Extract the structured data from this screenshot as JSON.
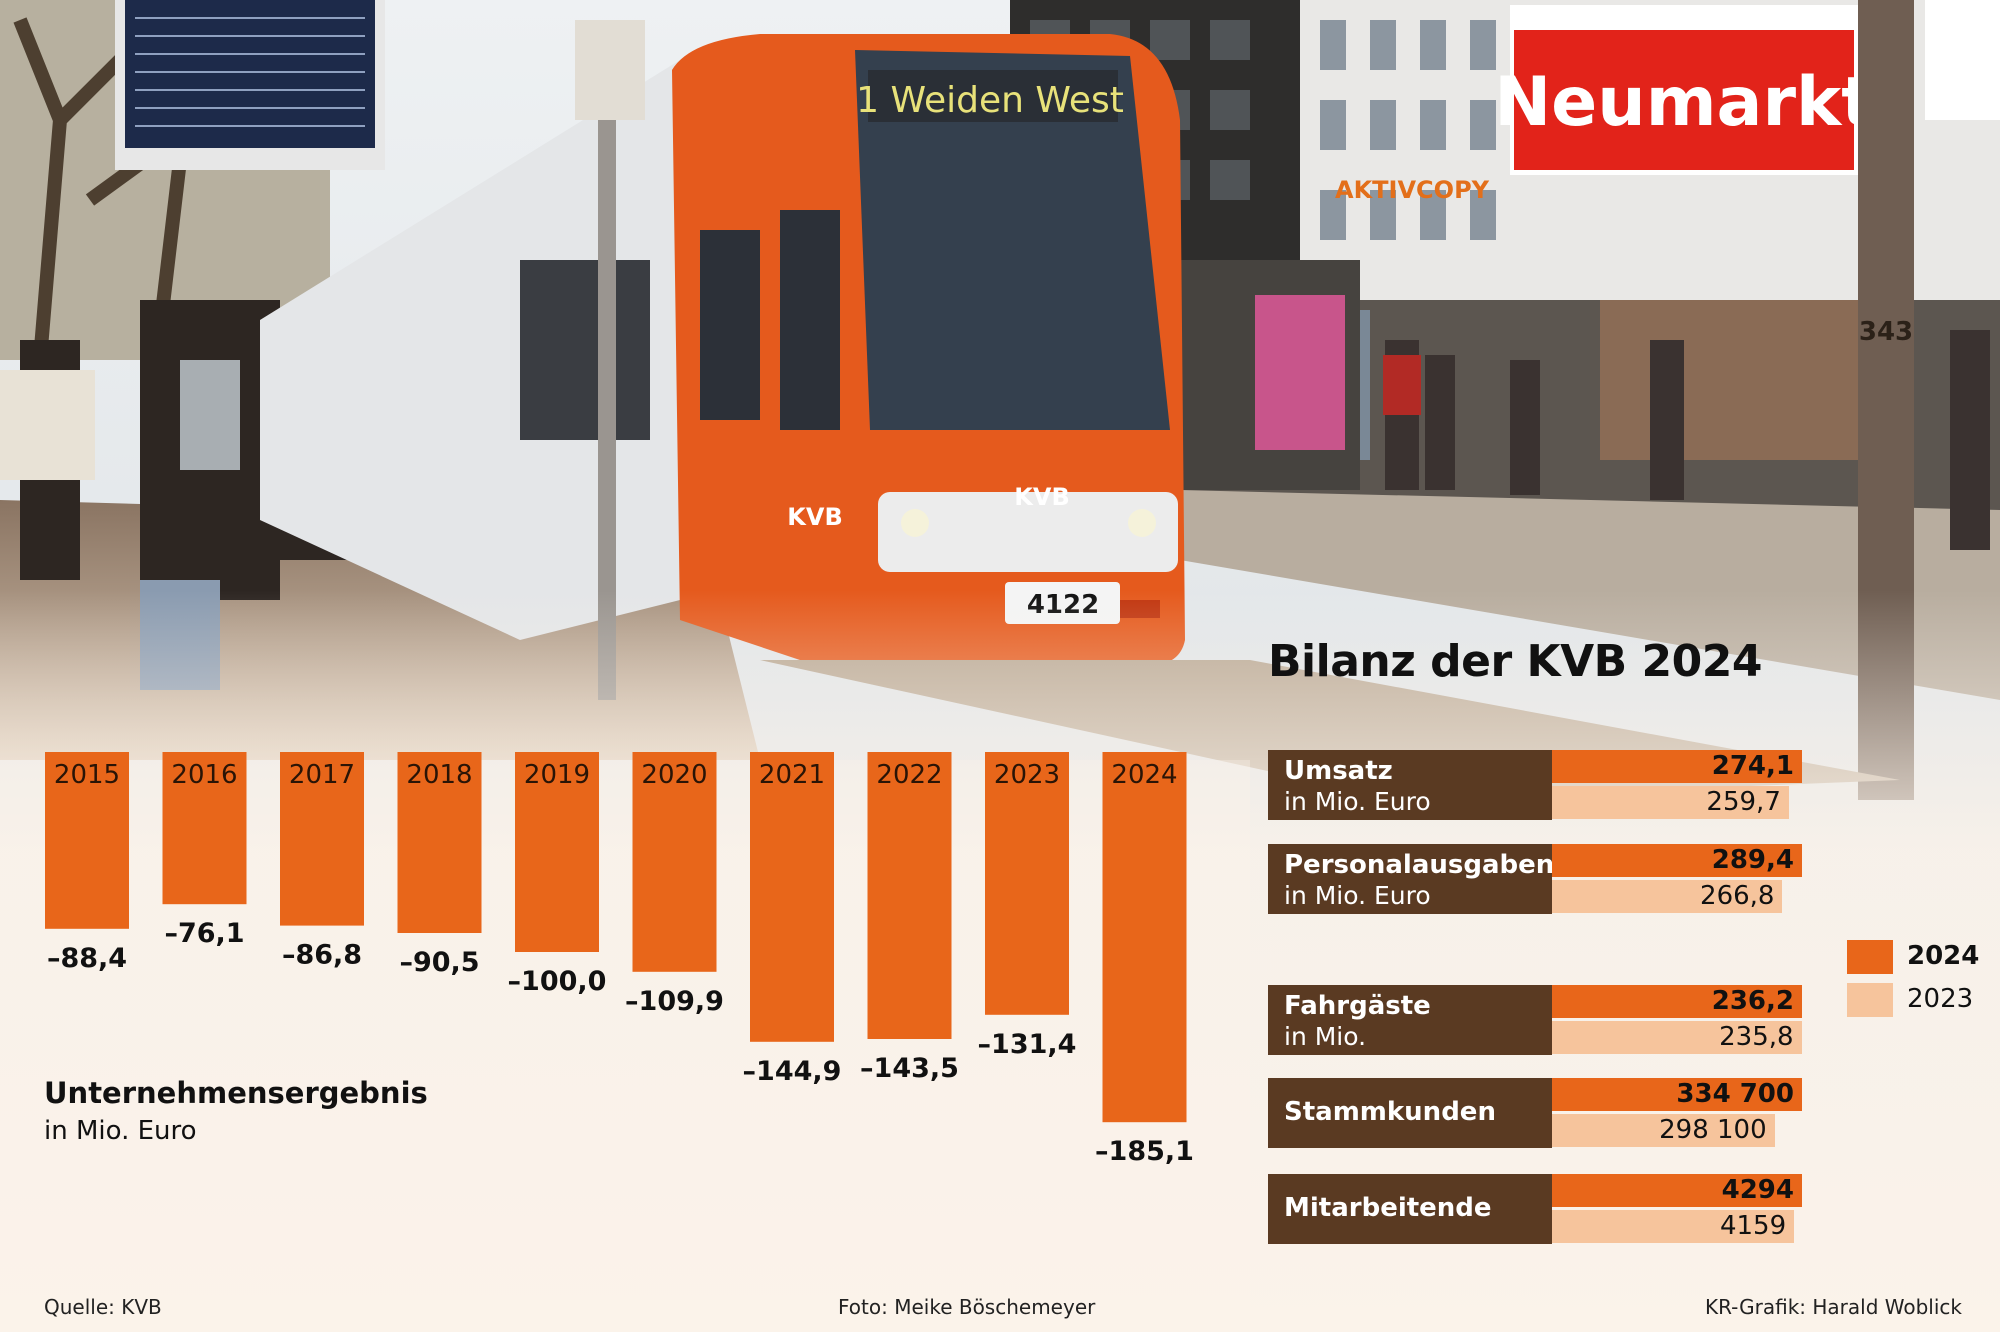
{
  "photo": {
    "destination_display": "1 Weiden West",
    "tram_number": "4122",
    "kvb_logo": "KVB",
    "station_sign": "Neumarkt",
    "shop_sign": "AKTIVCOPY",
    "pole_number": "343"
  },
  "chart_data": [
    {
      "type": "bar",
      "title": "Unternehmensergebnis",
      "subtitle": "in Mio. Euro",
      "categories": [
        "2015",
        "2016",
        "2017",
        "2018",
        "2019",
        "2020",
        "2021",
        "2022",
        "2023",
        "2024"
      ],
      "values": [
        -88.4,
        -76.1,
        -86.8,
        -90.5,
        -100.0,
        -109.9,
        -144.9,
        -143.5,
        -131.4,
        -185.1
      ],
      "value_labels": [
        "–88,4",
        "–76,1",
        "–86,8",
        "–90,5",
        "–100,0",
        "–109,9",
        "–144,9",
        "–143,5",
        "–131,4",
        "–185,1"
      ],
      "color": "#e8661a"
    },
    {
      "type": "bar",
      "title": "Bilanz der KVB 2024",
      "orientation": "horizontal",
      "legend": [
        "2024",
        "2023"
      ],
      "legend_colors": [
        "#e8661a",
        "#f6c49c"
      ],
      "items": [
        {
          "name": "Umsatz",
          "unit": "in Mio. Euro",
          "v2024": 274.1,
          "v2023": 259.7,
          "l2024": "274,1",
          "l2023": "259,7"
        },
        {
          "name": "Personalausgaben",
          "unit": "in Mio. Euro",
          "v2024": 289.4,
          "v2023": 266.8,
          "l2024": "289,4",
          "l2023": "266,8"
        },
        {
          "name": "Fahrgäste",
          "unit": "in Mio.",
          "v2024": 236.2,
          "v2023": 235.8,
          "l2024": "236,2",
          "l2023": "235,8"
        },
        {
          "name": "Stammkunden",
          "unit": "",
          "v2024": 334700,
          "v2023": 298100,
          "l2024": "334 700",
          "l2023": "298 100"
        },
        {
          "name": "Mitarbeitende",
          "unit": "",
          "v2024": 4294,
          "v2023": 4159,
          "l2024": "4294",
          "l2023": "4159"
        }
      ]
    }
  ],
  "footer": {
    "source": "Quelle: KVB",
    "photo_credit": "Foto: Meike Böschemeyer",
    "graphic_credit": "KR-Grafik: Harald Woblick"
  }
}
